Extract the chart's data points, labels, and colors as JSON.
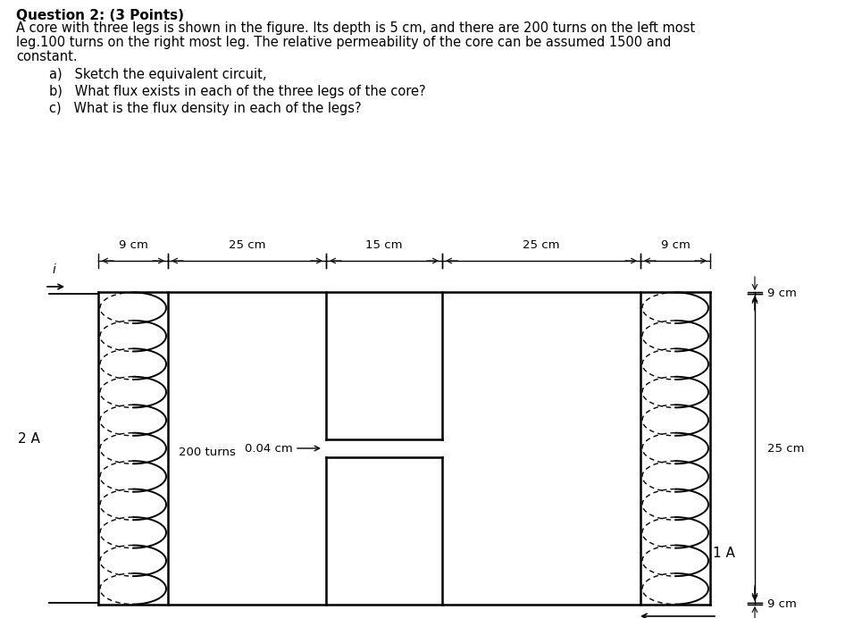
{
  "title_bold": "Question 2: (3 Points)",
  "body_line1": "A core with three legs is shown in the figure. Its depth is 5 cm, and there are 200 turns on the left most",
  "body_line2": "leg.100 turns on the right most leg. The relative permeability of the core can be assumed 1500 and",
  "body_line3": "constant.",
  "items": [
    "a)   Sketch the equivalent circuit,",
    "b)   What flux exists in each of the three legs of the core?",
    "c)   What is the flux density in each of the legs?"
  ],
  "dim_top_labels": [
    "9 cm",
    "25 cm",
    "15 cm",
    "25 cm",
    "9 cm"
  ],
  "dim_right_labels": [
    "9 cm",
    "25 cm",
    "9 cm"
  ],
  "label_200turns": "200 turns",
  "label_gap": "0.04 cm",
  "label_2A": "2 A",
  "label_1A": "1 A",
  "label_i": "i",
  "background_color": "#ffffff",
  "line_color": "#000000",
  "text_color": "#000000"
}
